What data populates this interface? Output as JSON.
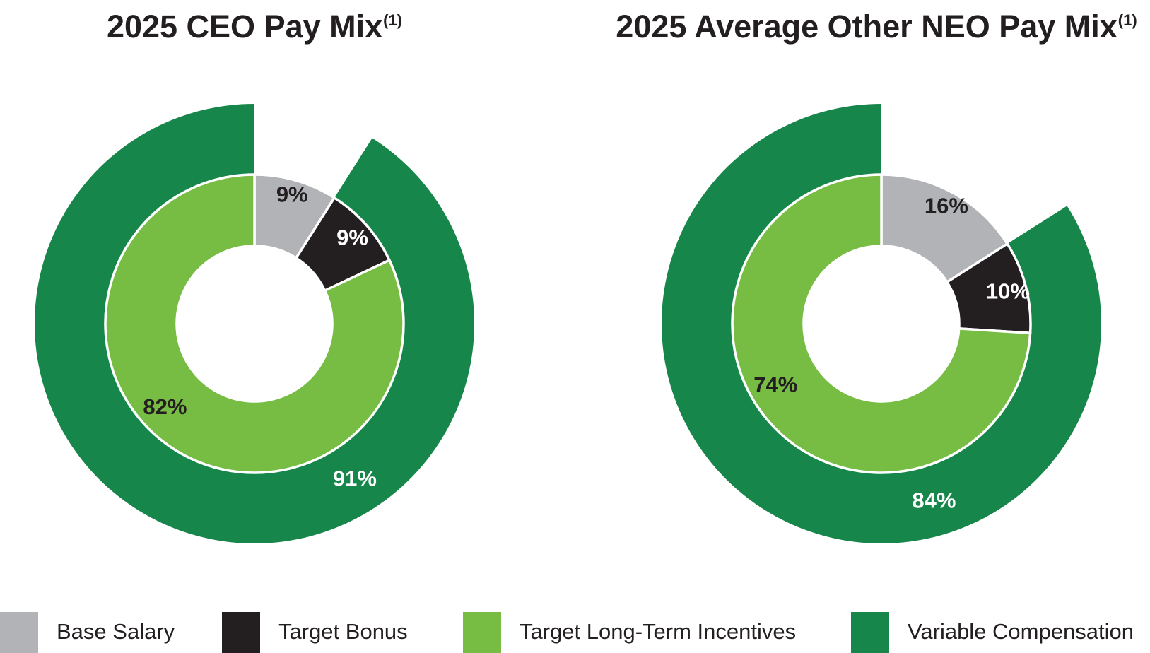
{
  "chart_data": [
    {
      "type": "pie",
      "title": "2025 CEO Pay Mix",
      "title_footnote": "(1)",
      "inner_ring": {
        "slices": [
          {
            "name": "Base Salary",
            "value": 9,
            "label": "9%"
          },
          {
            "name": "Target Bonus",
            "value": 9,
            "label": "9%"
          },
          {
            "name": "Target Long-Term Incentives",
            "value": 82,
            "label": "82%"
          }
        ]
      },
      "outer_ring": {
        "slices": [
          {
            "name": "Variable Compensation",
            "value": 91,
            "label": "91%"
          }
        ]
      }
    },
    {
      "type": "pie",
      "title": "2025 Average Other NEO Pay Mix",
      "title_footnote": "(1)",
      "inner_ring": {
        "slices": [
          {
            "name": "Base Salary",
            "value": 16,
            "label": "16%"
          },
          {
            "name": "Target Bonus",
            "value": 10,
            "label": "10%"
          },
          {
            "name": "Target Long-Term Incentives",
            "value": 74,
            "label": "74%"
          }
        ]
      },
      "outer_ring": {
        "slices": [
          {
            "name": "Variable Compensation",
            "value": 84,
            "label": "84%"
          }
        ]
      }
    }
  ],
  "legend": {
    "placement": "bottom",
    "items": [
      {
        "label": "Base Salary",
        "color": "#b1b3b6"
      },
      {
        "label": "Target Bonus",
        "color": "#231f20"
      },
      {
        "label": "Target Long-Term Incentives",
        "color": "#77bc43"
      },
      {
        "label": "Variable Compensation",
        "color": "#17864b"
      }
    ]
  },
  "colors": {
    "Base Salary": "#b1b3b6",
    "Target Bonus": "#231f20",
    "Target Long-Term Incentives": "#77bc43",
    "Variable Compensation": "#17864b"
  }
}
